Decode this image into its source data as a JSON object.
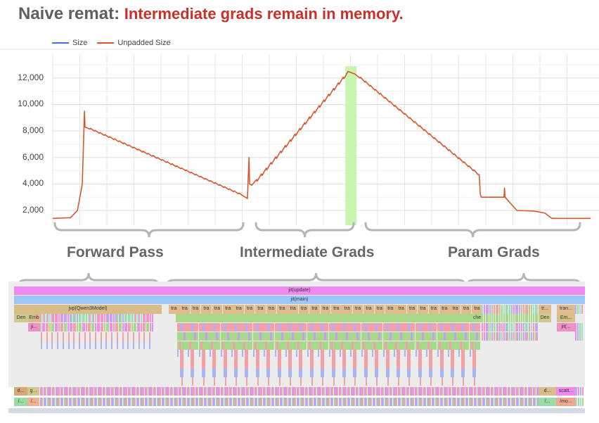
{
  "title": {
    "prefix": "Naive remat:",
    "highlight": "Intermediate grads remain in memory."
  },
  "colors": {
    "size": "#4a72d8",
    "unpadded": "#d9562b",
    "highlight": "#c8f5b0"
  },
  "chart_data": {
    "type": "line",
    "title": "",
    "xlabel": "",
    "ylabel": "",
    "xlim": [
      0,
      100
    ],
    "ylim": [
      1000,
      13800
    ],
    "yticks": [
      2000,
      4000,
      6000,
      8000,
      10000,
      12000
    ],
    "ytick_labels": [
      "2,000",
      "4,000",
      "6,000",
      "8,000",
      "10,000",
      "12,000"
    ],
    "grid": true,
    "legend_position": "top-left",
    "legend": [
      "Size",
      "Unpadded Size"
    ],
    "highlight_x": [
      54.4,
      56.5
    ],
    "series": [
      {
        "name": "Unpadded Size",
        "x": [
          0,
          3.3,
          4.6,
          5.5,
          5.9,
          6.0,
          35.4,
          36.2,
          36.5,
          36.6,
          37.0,
          54.9,
          56.2,
          79.1,
          79.3,
          79.5,
          79.7,
          83.9,
          84.0,
          84.1,
          86.3,
          89.5,
          91.5,
          92.8,
          100
        ],
        "y": [
          1400,
          1450,
          2000,
          4000,
          9500,
          8300,
          3100,
          2900,
          6000,
          4000,
          3900,
          12500,
          12300,
          4700,
          4700,
          3200,
          3000,
          3000,
          3700,
          3000,
          2000,
          1950,
          1800,
          1400,
          1400
        ]
      },
      {
        "name": "Size",
        "x": [],
        "y": []
      }
    ]
  },
  "phases": [
    "Forward Pass",
    "Intermediate Grads",
    "Param Grads"
  ],
  "trace": {
    "update": "jit(update)",
    "main": "jit(main)",
    "jvp": "jvp(Qwen3Model)",
    "den": "Den",
    "emb": "Emb",
    "ji": "ji...",
    "tra": [
      "tra",
      "tra",
      "tra",
      "tra",
      "tra",
      "tra",
      "tra",
      "tra",
      "tra",
      "tra",
      "tra",
      "tra",
      "tra",
      "tra",
      "tra",
      "tra",
      "tra",
      "tra",
      "tra",
      "tra",
      "tra",
      "tra",
      "tra",
      "tra",
      "tra",
      "tra",
      "tra",
      "tra",
      "tra"
    ],
    "che": "che",
    "tr_end": "tr...",
    "tran_end": "tran...",
    "den_end": "Den",
    "em_end": "Em...",
    "jit_end": "jit(...",
    "d1": "d...",
    "g1": "g...",
    "d2": "d...",
    "scatt": "scatt...",
    "s1": "/...",
    "s2": "/...",
    "s3": "/...",
    "mo": "/mo..."
  }
}
